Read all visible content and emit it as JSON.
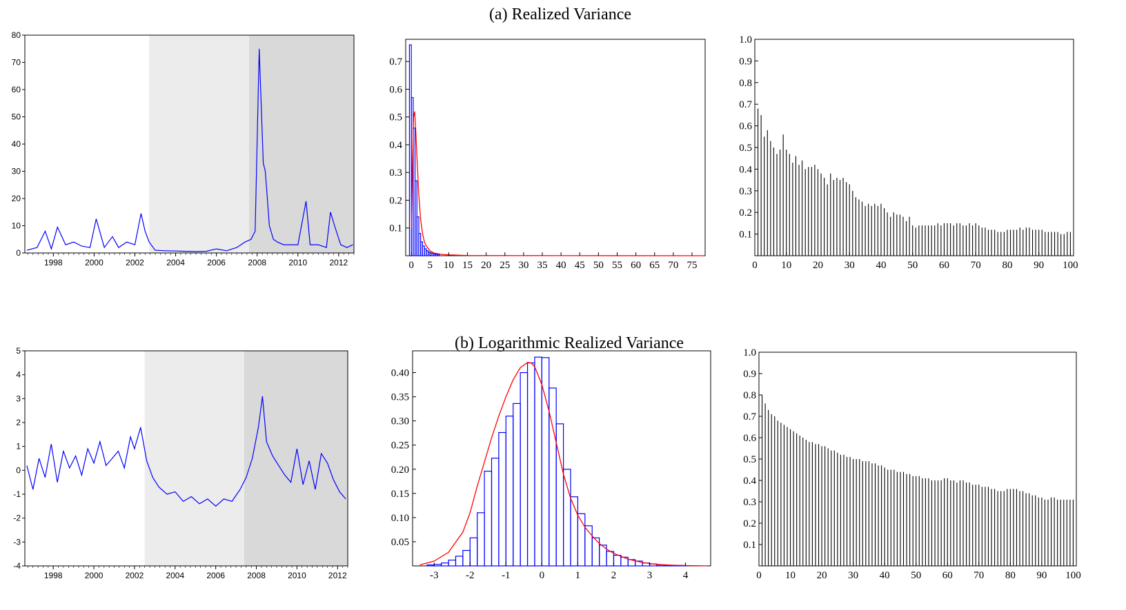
{
  "figure": {
    "title_a": "(a)  Realized Variance",
    "title_b": "(b)  Logarithmic Realized Variance"
  },
  "chart_data": [
    {
      "id": "a_series",
      "type": "line",
      "color": "#0000ff",
      "xlim": [
        1996.6,
        2012.75
      ],
      "ylim": [
        0,
        80
      ],
      "yticks": [
        0,
        10,
        20,
        30,
        40,
        50,
        60,
        70,
        80
      ],
      "xticks": [
        1998,
        2000,
        2002,
        2004,
        2006,
        2008,
        2010,
        2012
      ],
      "shaded_periods": [
        {
          "start": 2002.7,
          "end": 2007.6,
          "color": "#ececec"
        },
        {
          "start": 2007.6,
          "end": 2012.75,
          "color": "#d9d9d9"
        }
      ],
      "x": [
        1996.7,
        1997.2,
        1997.6,
        1997.9,
        1998.2,
        1998.6,
        1999.0,
        1999.4,
        1999.8,
        2000.1,
        2000.5,
        2000.9,
        2001.2,
        2001.6,
        2002.0,
        2002.3,
        2002.5,
        2002.7,
        2003.0,
        2003.5,
        2004.0,
        2004.5,
        2005.0,
        2005.5,
        2006.0,
        2006.5,
        2007.0,
        2007.4,
        2007.7,
        2007.9,
        2008.1,
        2008.3,
        2008.4,
        2008.5,
        2008.6,
        2008.8,
        2009.0,
        2009.3,
        2009.6,
        2010.0,
        2010.4,
        2010.6,
        2011.0,
        2011.4,
        2011.6,
        2011.8,
        2012.1,
        2012.4,
        2012.7
      ],
      "y": [
        1,
        2,
        8,
        1.5,
        9.5,
        3,
        4,
        2.5,
        2,
        12.5,
        2,
        6,
        2,
        4,
        3,
        14.5,
        8,
        4,
        1,
        0.8,
        0.7,
        0.6,
        0.5,
        0.6,
        1.5,
        0.8,
        2,
        4,
        5,
        8,
        75,
        33,
        30,
        20,
        10,
        5,
        4,
        3,
        3,
        3,
        19,
        3,
        3,
        2,
        15,
        10,
        3,
        2,
        3
      ]
    },
    {
      "id": "a_hist",
      "type": "bar",
      "bar_color": "#0000ff",
      "curve_color": "#ff0000",
      "xlim": [
        -1.5,
        78.5
      ],
      "ylim": [
        0,
        0.78
      ],
      "xticks": [
        0,
        5,
        10,
        15,
        20,
        25,
        30,
        35,
        40,
        45,
        50,
        55,
        60,
        65,
        70,
        75
      ],
      "yticks": [
        0.1,
        0.2,
        0.3,
        0.4,
        0.5,
        0.6,
        0.7
      ],
      "ytick_labels": [
        "0.1",
        "0.2",
        "0.3",
        "0.4",
        "0.5",
        "0.6",
        "0.7"
      ],
      "bin_width": 0.5,
      "bins_start": -0.5,
      "values": [
        0.76,
        0.57,
        0.46,
        0.27,
        0.14,
        0.08,
        0.05,
        0.035,
        0.025,
        0.018,
        0.013,
        0.01,
        0.008,
        0.006,
        0.005,
        0.004
      ],
      "density_curve": {
        "x": [
          0,
          0.3,
          0.6,
          0.9,
          1.2,
          1.6,
          2.0,
          2.5,
          3.0,
          3.5,
          4.0,
          5.0,
          6.0,
          8.0,
          10,
          15,
          25,
          40,
          78
        ],
        "y": [
          0.1,
          0.33,
          0.5,
          0.52,
          0.45,
          0.33,
          0.22,
          0.13,
          0.08,
          0.05,
          0.035,
          0.018,
          0.01,
          0.005,
          0.003,
          0.001,
          0.0005,
          0.0003,
          0.0001
        ]
      }
    },
    {
      "id": "a_acf",
      "type": "bar",
      "bar_color": "#000000",
      "xlim": [
        0,
        101
      ],
      "ylim": [
        0,
        1.0
      ],
      "xticks": [
        0,
        10,
        20,
        30,
        40,
        50,
        60,
        70,
        80,
        90,
        100
      ],
      "yticks": [
        0.1,
        0.2,
        0.3,
        0.4,
        0.5,
        0.6,
        0.7,
        0.8,
        0.9,
        1.0
      ],
      "ytick_labels": [
        "0.1",
        "0.2",
        "0.3",
        "0.4",
        "0.5",
        "0.6",
        "0.7",
        "0.8",
        "0.9",
        "1.0"
      ],
      "lags": [
        1,
        2,
        3,
        4,
        5,
        6,
        7,
        8,
        9,
        10,
        11,
        12,
        13,
        14,
        15,
        16,
        17,
        18,
        19,
        20,
        21,
        22,
        23,
        24,
        25,
        26,
        27,
        28,
        29,
        30,
        31,
        32,
        33,
        34,
        35,
        36,
        37,
        38,
        39,
        40,
        41,
        42,
        43,
        44,
        45,
        46,
        47,
        48,
        49,
        50,
        51,
        52,
        53,
        54,
        55,
        56,
        57,
        58,
        59,
        60,
        61,
        62,
        63,
        64,
        65,
        66,
        67,
        68,
        69,
        70,
        71,
        72,
        73,
        74,
        75,
        76,
        77,
        78,
        79,
        80,
        81,
        82,
        83,
        84,
        85,
        86,
        87,
        88,
        89,
        90,
        91,
        92,
        93,
        94,
        95,
        96,
        97,
        98,
        99,
        100
      ],
      "values": [
        0.68,
        0.65,
        0.55,
        0.58,
        0.53,
        0.5,
        0.47,
        0.49,
        0.56,
        0.49,
        0.47,
        0.43,
        0.46,
        0.42,
        0.44,
        0.4,
        0.41,
        0.41,
        0.42,
        0.4,
        0.38,
        0.36,
        0.33,
        0.38,
        0.35,
        0.36,
        0.35,
        0.36,
        0.34,
        0.33,
        0.3,
        0.27,
        0.26,
        0.25,
        0.23,
        0.24,
        0.23,
        0.24,
        0.23,
        0.24,
        0.22,
        0.2,
        0.18,
        0.2,
        0.19,
        0.19,
        0.18,
        0.16,
        0.18,
        0.14,
        0.13,
        0.14,
        0.14,
        0.14,
        0.14,
        0.14,
        0.14,
        0.15,
        0.14,
        0.15,
        0.15,
        0.15,
        0.14,
        0.15,
        0.15,
        0.14,
        0.14,
        0.15,
        0.14,
        0.15,
        0.14,
        0.13,
        0.13,
        0.12,
        0.12,
        0.12,
        0.11,
        0.11,
        0.11,
        0.12,
        0.12,
        0.12,
        0.12,
        0.13,
        0.12,
        0.13,
        0.13,
        0.12,
        0.12,
        0.12,
        0.12,
        0.11,
        0.11,
        0.11,
        0.11,
        0.11,
        0.1,
        0.1,
        0.11,
        0.11
      ]
    },
    {
      "id": "b_series",
      "type": "line",
      "color": "#0000ff",
      "xlim": [
        1996.6,
        2012.5
      ],
      "ylim": [
        -4,
        5
      ],
      "yticks": [
        -4,
        -3,
        -2,
        -1,
        0,
        1,
        2,
        3,
        4,
        5
      ],
      "xticks": [
        1998,
        2000,
        2002,
        2004,
        2006,
        2008,
        2010,
        2012
      ],
      "shaded_periods": [
        {
          "start": 2002.5,
          "end": 2007.4,
          "color": "#ececec"
        },
        {
          "start": 2007.4,
          "end": 2012.5,
          "color": "#d9d9d9"
        }
      ],
      "x": [
        1996.7,
        1997.0,
        1997.3,
        1997.6,
        1997.9,
        1998.2,
        1998.5,
        1998.8,
        1999.1,
        1999.4,
        1999.7,
        2000.0,
        2000.3,
        2000.6,
        2000.9,
        2001.2,
        2001.5,
        2001.8,
        2002.0,
        2002.3,
        2002.6,
        2002.9,
        2003.2,
        2003.6,
        2004.0,
        2004.4,
        2004.8,
        2005.2,
        2005.6,
        2006.0,
        2006.4,
        2006.8,
        2007.2,
        2007.5,
        2007.8,
        2008.1,
        2008.3,
        2008.5,
        2008.8,
        2009.1,
        2009.4,
        2009.7,
        2010.0,
        2010.3,
        2010.6,
        2010.9,
        2011.2,
        2011.5,
        2011.8,
        2012.1,
        2012.4
      ],
      "y": [
        0.2,
        -0.8,
        0.5,
        -0.3,
        1.1,
        -0.5,
        0.8,
        0.1,
        0.6,
        -0.2,
        0.9,
        0.3,
        1.2,
        0.2,
        0.5,
        0.8,
        0.1,
        1.4,
        0.9,
        1.8,
        0.4,
        -0.3,
        -0.7,
        -1.0,
        -0.9,
        -1.3,
        -1.1,
        -1.4,
        -1.2,
        -1.5,
        -1.2,
        -1.3,
        -0.8,
        -0.3,
        0.5,
        1.8,
        3.1,
        1.2,
        0.6,
        0.2,
        -0.2,
        -0.5,
        0.9,
        -0.6,
        0.4,
        -0.8,
        0.7,
        0.3,
        -0.4,
        -0.9,
        -1.2
      ]
    },
    {
      "id": "b_hist",
      "type": "bar",
      "bar_color": "#0000ff",
      "curve_color": "#ff0000",
      "xlim": [
        -3.6,
        4.7
      ],
      "ylim": [
        0,
        0.445
      ],
      "xticks": [
        -3,
        -2,
        -1,
        0,
        1,
        2,
        3,
        4
      ],
      "yticks": [
        0.05,
        0.1,
        0.15,
        0.2,
        0.25,
        0.3,
        0.35,
        0.4
      ],
      "ytick_labels": [
        "0.05",
        "0.10",
        "0.15",
        "0.20",
        "0.25",
        "0.30",
        "0.35",
        "0.40"
      ],
      "bin_width": 0.2,
      "bins_start": -3.2,
      "values": [
        0.002,
        0.003,
        0.006,
        0.012,
        0.02,
        0.032,
        0.058,
        0.11,
        0.196,
        0.223,
        0.276,
        0.31,
        0.336,
        0.4,
        0.42,
        0.432,
        0.431,
        0.368,
        0.294,
        0.2,
        0.143,
        0.108,
        0.083,
        0.058,
        0.043,
        0.03,
        0.022,
        0.018,
        0.013,
        0.01,
        0.006,
        0.004,
        0.002,
        0.001,
        0.001,
        0.001
      ],
      "density_curve": {
        "x": [
          -3.4,
          -3.0,
          -2.6,
          -2.2,
          -2.0,
          -1.8,
          -1.6,
          -1.4,
          -1.2,
          -1.0,
          -0.8,
          -0.6,
          -0.4,
          -0.3,
          -0.2,
          0.0,
          0.2,
          0.4,
          0.6,
          0.8,
          1.0,
          1.2,
          1.4,
          1.6,
          1.8,
          2.0,
          2.4,
          2.8,
          3.2,
          3.6,
          4.0,
          4.6
        ],
        "y": [
          0.002,
          0.01,
          0.028,
          0.07,
          0.11,
          0.165,
          0.215,
          0.265,
          0.31,
          0.35,
          0.385,
          0.41,
          0.421,
          0.42,
          0.412,
          0.375,
          0.32,
          0.255,
          0.19,
          0.14,
          0.105,
          0.08,
          0.062,
          0.046,
          0.035,
          0.026,
          0.014,
          0.007,
          0.003,
          0.0015,
          0.0007,
          0.0001
        ]
      }
    },
    {
      "id": "b_acf",
      "type": "bar",
      "bar_color": "#000000",
      "xlim": [
        0,
        101
      ],
      "ylim": [
        0,
        1.0
      ],
      "xticks": [
        0,
        10,
        20,
        30,
        40,
        50,
        60,
        70,
        80,
        90,
        100
      ],
      "yticks": [
        0.1,
        0.2,
        0.3,
        0.4,
        0.5,
        0.6,
        0.7,
        0.8,
        0.9,
        1.0
      ],
      "ytick_labels": [
        "0.1",
        "0.2",
        "0.3",
        "0.4",
        "0.5",
        "0.6",
        "0.7",
        "0.8",
        "0.9",
        "1.0"
      ],
      "lags": [
        1,
        2,
        3,
        4,
        5,
        6,
        7,
        8,
        9,
        10,
        11,
        12,
        13,
        14,
        15,
        16,
        17,
        18,
        19,
        20,
        21,
        22,
        23,
        24,
        25,
        26,
        27,
        28,
        29,
        30,
        31,
        32,
        33,
        34,
        35,
        36,
        37,
        38,
        39,
        40,
        41,
        42,
        43,
        44,
        45,
        46,
        47,
        48,
        49,
        50,
        51,
        52,
        53,
        54,
        55,
        56,
        57,
        58,
        59,
        60,
        61,
        62,
        63,
        64,
        65,
        66,
        67,
        68,
        69,
        70,
        71,
        72,
        73,
        74,
        75,
        76,
        77,
        78,
        79,
        80,
        81,
        82,
        83,
        84,
        85,
        86,
        87,
        88,
        89,
        90,
        91,
        92,
        93,
        94,
        95,
        96,
        97,
        98,
        99,
        100
      ],
      "values": [
        0.8,
        0.76,
        0.73,
        0.71,
        0.7,
        0.68,
        0.67,
        0.66,
        0.65,
        0.64,
        0.63,
        0.62,
        0.61,
        0.6,
        0.59,
        0.58,
        0.58,
        0.57,
        0.57,
        0.56,
        0.56,
        0.55,
        0.54,
        0.54,
        0.53,
        0.52,
        0.52,
        0.51,
        0.51,
        0.5,
        0.5,
        0.5,
        0.49,
        0.49,
        0.49,
        0.48,
        0.48,
        0.47,
        0.47,
        0.46,
        0.45,
        0.45,
        0.45,
        0.44,
        0.44,
        0.44,
        0.43,
        0.43,
        0.42,
        0.42,
        0.42,
        0.41,
        0.41,
        0.41,
        0.4,
        0.4,
        0.4,
        0.4,
        0.41,
        0.41,
        0.4,
        0.4,
        0.39,
        0.4,
        0.4,
        0.39,
        0.39,
        0.38,
        0.38,
        0.38,
        0.37,
        0.37,
        0.37,
        0.36,
        0.36,
        0.35,
        0.35,
        0.35,
        0.36,
        0.36,
        0.36,
        0.36,
        0.35,
        0.35,
        0.34,
        0.34,
        0.33,
        0.33,
        0.32,
        0.32,
        0.31,
        0.31,
        0.32,
        0.32,
        0.31,
        0.31,
        0.31,
        0.31,
        0.31,
        0.31
      ]
    }
  ]
}
